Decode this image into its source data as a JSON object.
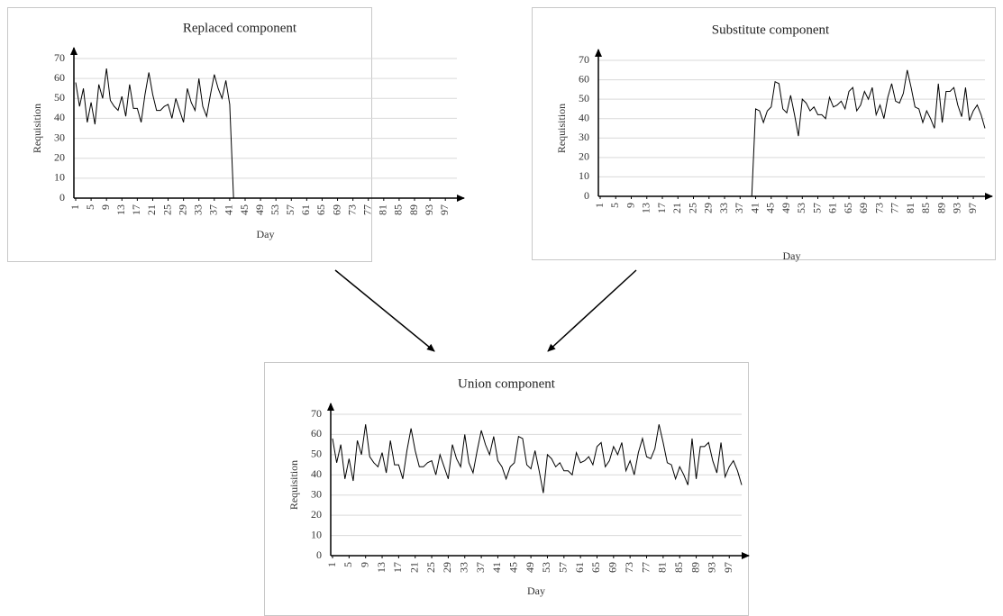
{
  "chart_data": [
    {
      "type": "line",
      "title": "Replaced component",
      "x_label": "Day",
      "y_label": "Requisition",
      "x": [
        1,
        2,
        3,
        4,
        5,
        6,
        7,
        8,
        9,
        10,
        11,
        12,
        13,
        14,
        15,
        16,
        17,
        18,
        19,
        20,
        21,
        22,
        23,
        24,
        25,
        26,
        27,
        28,
        29,
        30,
        31,
        32,
        33,
        34,
        35,
        36,
        37,
        38,
        39,
        40,
        41,
        42,
        43,
        44,
        45,
        46,
        47,
        48,
        49,
        50,
        51,
        52,
        53,
        54,
        55,
        56,
        57,
        58,
        59,
        60,
        61,
        62,
        63,
        64,
        65,
        66,
        67,
        68,
        69,
        70,
        71,
        72,
        73,
        74,
        75,
        76,
        77,
        78,
        79,
        80,
        81,
        82,
        83,
        84,
        85,
        86,
        87,
        88,
        89,
        90,
        91,
        92,
        93,
        94,
        95,
        96,
        97,
        98,
        99,
        100
      ],
      "values": [
        58,
        46,
        55,
        38,
        48,
        37,
        57,
        50,
        65,
        49,
        46,
        44,
        51,
        41,
        57,
        45,
        45,
        38,
        52,
        63,
        52,
        44,
        44,
        46,
        47,
        40,
        50,
        44,
        38,
        55,
        48,
        44,
        60,
        46,
        41,
        52,
        62,
        55,
        50,
        59,
        47,
        0,
        0,
        0,
        0,
        0,
        0,
        0,
        0,
        0,
        0,
        0,
        0,
        0,
        0,
        0,
        0,
        0,
        0,
        0,
        0,
        0,
        0,
        0,
        0,
        0,
        0,
        0,
        0,
        0,
        0,
        0,
        0,
        0,
        0,
        0,
        0,
        0,
        0,
        0,
        0,
        0,
        0,
        0,
        0,
        0,
        0,
        0,
        0,
        0,
        0,
        0,
        0,
        0,
        0,
        0,
        0,
        0,
        0,
        0
      ],
      "color": "#000000",
      "xlim": [
        1,
        100
      ],
      "xticks": [
        1,
        5,
        9,
        13,
        17,
        21,
        25,
        29,
        33,
        37,
        41,
        45,
        49,
        53,
        57,
        61,
        65,
        69,
        73,
        77,
        81,
        85,
        89,
        93,
        97
      ],
      "ylim": [
        0,
        70
      ],
      "yticks": [
        0,
        10,
        20,
        30,
        40,
        50,
        60,
        70
      ],
      "grid": true
    },
    {
      "type": "line",
      "title": "Substitute component",
      "x_label": "Day",
      "y_label": "Requisition",
      "x": [
        1,
        2,
        3,
        4,
        5,
        6,
        7,
        8,
        9,
        10,
        11,
        12,
        13,
        14,
        15,
        16,
        17,
        18,
        19,
        20,
        21,
        22,
        23,
        24,
        25,
        26,
        27,
        28,
        29,
        30,
        31,
        32,
        33,
        34,
        35,
        36,
        37,
        38,
        39,
        40,
        41,
        42,
        43,
        44,
        45,
        46,
        47,
        48,
        49,
        50,
        51,
        52,
        53,
        54,
        55,
        56,
        57,
        58,
        59,
        60,
        61,
        62,
        63,
        64,
        65,
        66,
        67,
        68,
        69,
        70,
        71,
        72,
        73,
        74,
        75,
        76,
        77,
        78,
        79,
        80,
        81,
        82,
        83,
        84,
        85,
        86,
        87,
        88,
        89,
        90,
        91,
        92,
        93,
        94,
        95,
        96,
        97,
        98,
        99,
        100
      ],
      "values": [
        0,
        0,
        0,
        0,
        0,
        0,
        0,
        0,
        0,
        0,
        0,
        0,
        0,
        0,
        0,
        0,
        0,
        0,
        0,
        0,
        0,
        0,
        0,
        0,
        0,
        0,
        0,
        0,
        0,
        0,
        0,
        0,
        0,
        0,
        0,
        0,
        0,
        0,
        0,
        0,
        45,
        44,
        38,
        44,
        46,
        59,
        58,
        45,
        43,
        52,
        42,
        31,
        50,
        48,
        44,
        46,
        42,
        42,
        40,
        51,
        46,
        47,
        49,
        45,
        54,
        56,
        44,
        47,
        54,
        50,
        56,
        42,
        47,
        40,
        51,
        58,
        49,
        48,
        53,
        65,
        56,
        46,
        45,
        38,
        44,
        40,
        35,
        58,
        38,
        54,
        54,
        56,
        47,
        41,
        56,
        39,
        44,
        47,
        42,
        35
      ],
      "color": "#000000",
      "xlim": [
        1,
        100
      ],
      "xticks": [
        1,
        5,
        9,
        13,
        17,
        21,
        25,
        29,
        33,
        37,
        41,
        45,
        49,
        53,
        57,
        61,
        65,
        69,
        73,
        77,
        81,
        85,
        89,
        93,
        97
      ],
      "ylim": [
        0,
        70
      ],
      "yticks": [
        0,
        10,
        20,
        30,
        40,
        50,
        60,
        70
      ],
      "grid": true
    },
    {
      "type": "line",
      "title": "Union component",
      "x_label": "Day",
      "y_label": "Requisition",
      "x": [
        1,
        2,
        3,
        4,
        5,
        6,
        7,
        8,
        9,
        10,
        11,
        12,
        13,
        14,
        15,
        16,
        17,
        18,
        19,
        20,
        21,
        22,
        23,
        24,
        25,
        26,
        27,
        28,
        29,
        30,
        31,
        32,
        33,
        34,
        35,
        36,
        37,
        38,
        39,
        40,
        41,
        42,
        43,
        44,
        45,
        46,
        47,
        48,
        49,
        50,
        51,
        52,
        53,
        54,
        55,
        56,
        57,
        58,
        59,
        60,
        61,
        62,
        63,
        64,
        65,
        66,
        67,
        68,
        69,
        70,
        71,
        72,
        73,
        74,
        75,
        76,
        77,
        78,
        79,
        80,
        81,
        82,
        83,
        84,
        85,
        86,
        87,
        88,
        89,
        90,
        91,
        92,
        93,
        94,
        95,
        96,
        97,
        98,
        99,
        100
      ],
      "values": [
        58,
        46,
        55,
        38,
        48,
        37,
        57,
        50,
        65,
        49,
        46,
        44,
        51,
        41,
        57,
        45,
        45,
        38,
        52,
        63,
        52,
        44,
        44,
        46,
        47,
        40,
        50,
        44,
        38,
        55,
        48,
        44,
        60,
        46,
        41,
        52,
        62,
        55,
        50,
        59,
        47,
        44,
        38,
        44,
        46,
        59,
        58,
        45,
        43,
        52,
        42,
        31,
        50,
        48,
        44,
        46,
        42,
        42,
        40,
        51,
        46,
        47,
        49,
        45,
        54,
        56,
        44,
        47,
        54,
        50,
        56,
        42,
        47,
        40,
        51,
        58,
        49,
        48,
        53,
        65,
        56,
        46,
        45,
        38,
        44,
        40,
        35,
        58,
        38,
        54,
        54,
        56,
        47,
        41,
        56,
        39,
        44,
        47,
        42,
        35
      ],
      "color": "#000000",
      "xlim": [
        1,
        100
      ],
      "xticks": [
        1,
        5,
        9,
        13,
        17,
        21,
        25,
        29,
        33,
        37,
        41,
        45,
        49,
        53,
        57,
        61,
        65,
        69,
        73,
        77,
        81,
        85,
        89,
        93,
        97
      ],
      "ylim": [
        0,
        70
      ],
      "yticks": [
        0,
        10,
        20,
        30,
        40,
        50,
        60,
        70
      ],
      "grid": true
    }
  ]
}
